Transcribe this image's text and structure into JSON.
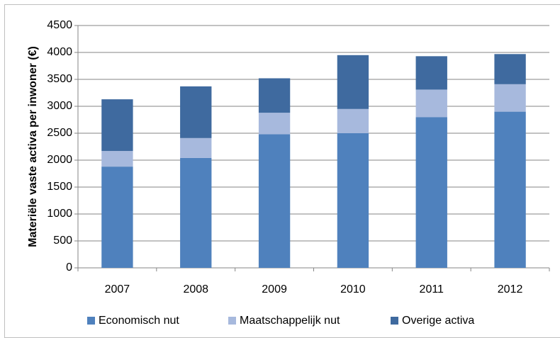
{
  "chart_data": {
    "type": "stacked-bar",
    "y_label": "Materiële vaste activa per inwoner (€)",
    "categories": [
      "2007",
      "2008",
      "2009",
      "2010",
      "2011",
      "2012"
    ],
    "series": [
      {
        "name": "Economisch nut",
        "color": "#4f81bd",
        "values": [
          1880,
          2040,
          2480,
          2500,
          2800,
          2900
        ]
      },
      {
        "name": "Maatschappelijk nut",
        "color": "#a7b9dd",
        "values": [
          290,
          370,
          400,
          450,
          510,
          510
        ]
      },
      {
        "name": "Overige activa",
        "color": "#3f6a9f",
        "values": [
          960,
          960,
          640,
          1000,
          620,
          560
        ]
      }
    ],
    "ylim": [
      0,
      4500
    ],
    "yticks": [
      0,
      500,
      1000,
      1500,
      2000,
      2500,
      3000,
      3500,
      4000,
      4500
    ],
    "grid": true,
    "legend": "bottom"
  }
}
